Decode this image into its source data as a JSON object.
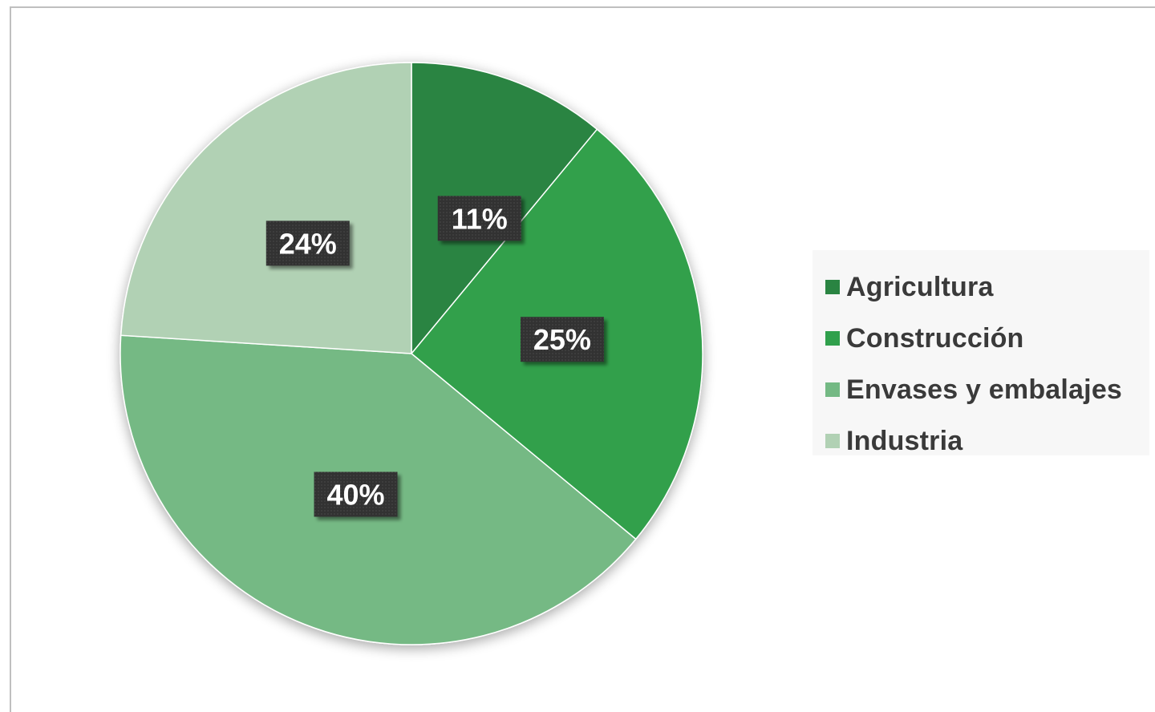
{
  "chart_data": {
    "type": "pie",
    "title": "",
    "categories": [
      "Agricultura",
      "Construcción",
      "Envases y embalajes",
      "Industria"
    ],
    "values": [
      11,
      25,
      40,
      24
    ],
    "labels": [
      "11%",
      "25%",
      "40%",
      "24%"
    ],
    "colors": [
      "#2a8442",
      "#30a04c",
      "#74b984",
      "#b1d1b4"
    ],
    "label_background": "#333333",
    "legend_position": "right",
    "start_angle_deg": 0,
    "direction": "clockwise"
  }
}
